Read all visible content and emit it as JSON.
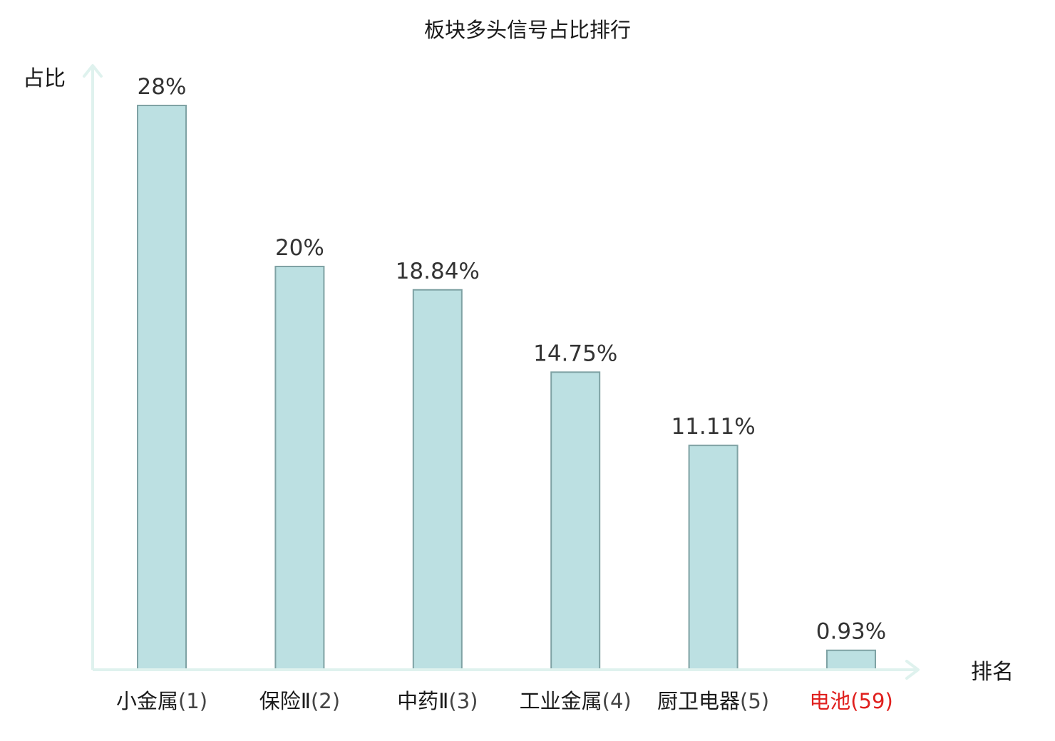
{
  "chart_data": {
    "type": "bar",
    "title": "板块多头信号占比排行",
    "ylabel": "占比",
    "xlabel": "排名",
    "ylim": [
      0,
      28
    ],
    "grid": false,
    "categories": [
      {
        "name": "小金属",
        "rank": "(1)"
      },
      {
        "name": "保险Ⅱ",
        "rank": "(2)"
      },
      {
        "name": "中药Ⅱ",
        "rank": "(3)"
      },
      {
        "name": "工业金属",
        "rank": "(4)"
      },
      {
        "name": "厨卫电器",
        "rank": "(5)"
      },
      {
        "name": "电池",
        "rank": "(59)",
        "highlight": true
      }
    ],
    "values": [
      28,
      20,
      18.84,
      14.75,
      11.11,
      0.93
    ],
    "value_labels": [
      "28%",
      "20%",
      "18.84%",
      "14.75%",
      "11.11%",
      "0.93%"
    ],
    "colors": {
      "bar_fill": "#bce0e2",
      "bar_stroke": "#7fa2a4",
      "axis": "#dff2ee",
      "highlight": "#e0201e"
    }
  }
}
